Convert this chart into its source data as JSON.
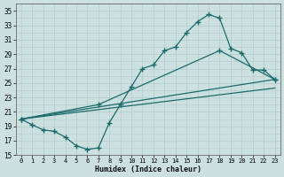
{
  "xlabel": "Humidex (Indice chaleur)",
  "bg_color": "#cde0e0",
  "grid_color": "#b0cccc",
  "line_color": "#1a6b6b",
  "xlim": [
    -0.5,
    23.5
  ],
  "ylim": [
    15,
    36
  ],
  "ytick_vals": [
    15,
    17,
    19,
    21,
    23,
    25,
    27,
    29,
    31,
    33,
    35
  ],
  "xtick_vals": [
    0,
    1,
    2,
    3,
    4,
    5,
    6,
    7,
    8,
    9,
    10,
    11,
    12,
    13,
    14,
    15,
    16,
    17,
    18,
    19,
    20,
    21,
    22,
    23
  ],
  "curve1_x": [
    0,
    1,
    2,
    3,
    4,
    5,
    6,
    7,
    8,
    9,
    10,
    11,
    12,
    13,
    14,
    15,
    16,
    17,
    18,
    19,
    20,
    21,
    22,
    23
  ],
  "curve1_y": [
    20.0,
    19.2,
    18.5,
    18.3,
    17.5,
    16.3,
    15.8,
    16.0,
    19.5,
    22.0,
    24.5,
    27.0,
    27.5,
    29.5,
    30.0,
    32.0,
    33.5,
    34.5,
    34.0,
    29.8,
    29.2,
    26.8,
    26.8,
    25.5
  ],
  "curve2_x": [
    0,
    7,
    18,
    23
  ],
  "curve2_y": [
    20.0,
    22.0,
    29.5,
    25.5
  ],
  "curve3_x": [
    0,
    23
  ],
  "curve3_y": [
    20.0,
    25.5
  ],
  "curve4_x": [
    0,
    23
  ],
  "curve4_y": [
    20.0,
    24.3
  ]
}
